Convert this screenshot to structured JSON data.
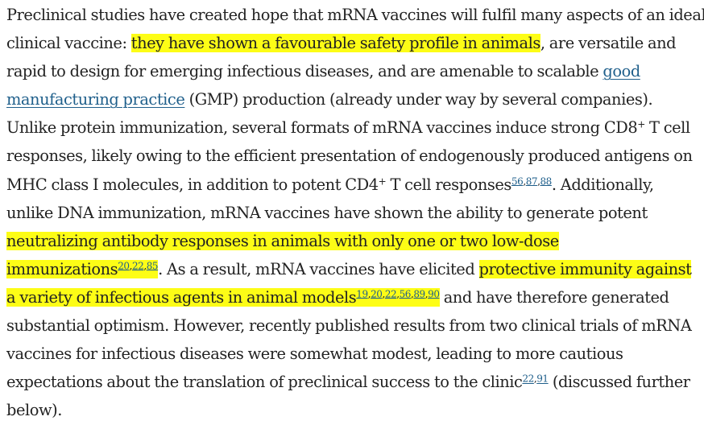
{
  "paragraph": {
    "l1": "Preclinical studies have created hope that mRNA vaccines will fulfil many aspects of an ideal",
    "l2a": "clinical vaccine: ",
    "l2hl": "they have shown a favourable safety profile in animals",
    "l2b": ", are versatile and",
    "l3a": "rapid to design for emerging infectious diseases, and are amenable to scalable ",
    "l3link": "good",
    "l4link": "manufacturing practice",
    "l4b": " (GMP) production (already under way by several companies).",
    "l5a": "Unlike protein immunization, several formats of mRNA vaccines induce strong CD8",
    "l5sup": "+",
    "l5b": " T cell",
    "l6": "responses, likely owing to the efficient presentation of endogenously produced antigens on",
    "l7a": "MHC class I molecules, in addition to potent CD4",
    "l7sup": "+",
    "l7b": " T cell responses",
    "l7c": ". Additionally,",
    "l8": "unlike DNA immunization, mRNA vaccines have shown the ability to generate potent",
    "l9hl": "neutralizing antibody responses in animals with only one or two low-dose",
    "l10hl": "immunizations",
    "l10b": ". As a result, mRNA vaccines have elicited ",
    "l10hl2": "protective immunity against",
    "l11hl": "a variety of infectious agents in animal models",
    "l11b": " and have therefore generated",
    "l12": "substantial optimism. However, recently published results from two clinical trials of mRNA",
    "l13": "vaccines for infectious diseases were somewhat modest, leading to more cautious",
    "l14a": "expectations about the translation of preclinical success to the clinic",
    "l14b": " (discussed further",
    "l15": "below)."
  },
  "citations": {
    "c56": "56",
    "c87": "87",
    "c88": "88",
    "c20a": "20",
    "c22a": "22",
    "c85": "85",
    "c19": "19",
    "c20b": "20",
    "c22b": "22",
    "c56b": "56",
    "c89": "89",
    "c90": "90",
    "c22c": "22",
    "c91": "91",
    "sep": ","
  },
  "colors": {
    "text": "#222222",
    "link": "#1f5f8b",
    "highlight": "#fdfd16"
  }
}
